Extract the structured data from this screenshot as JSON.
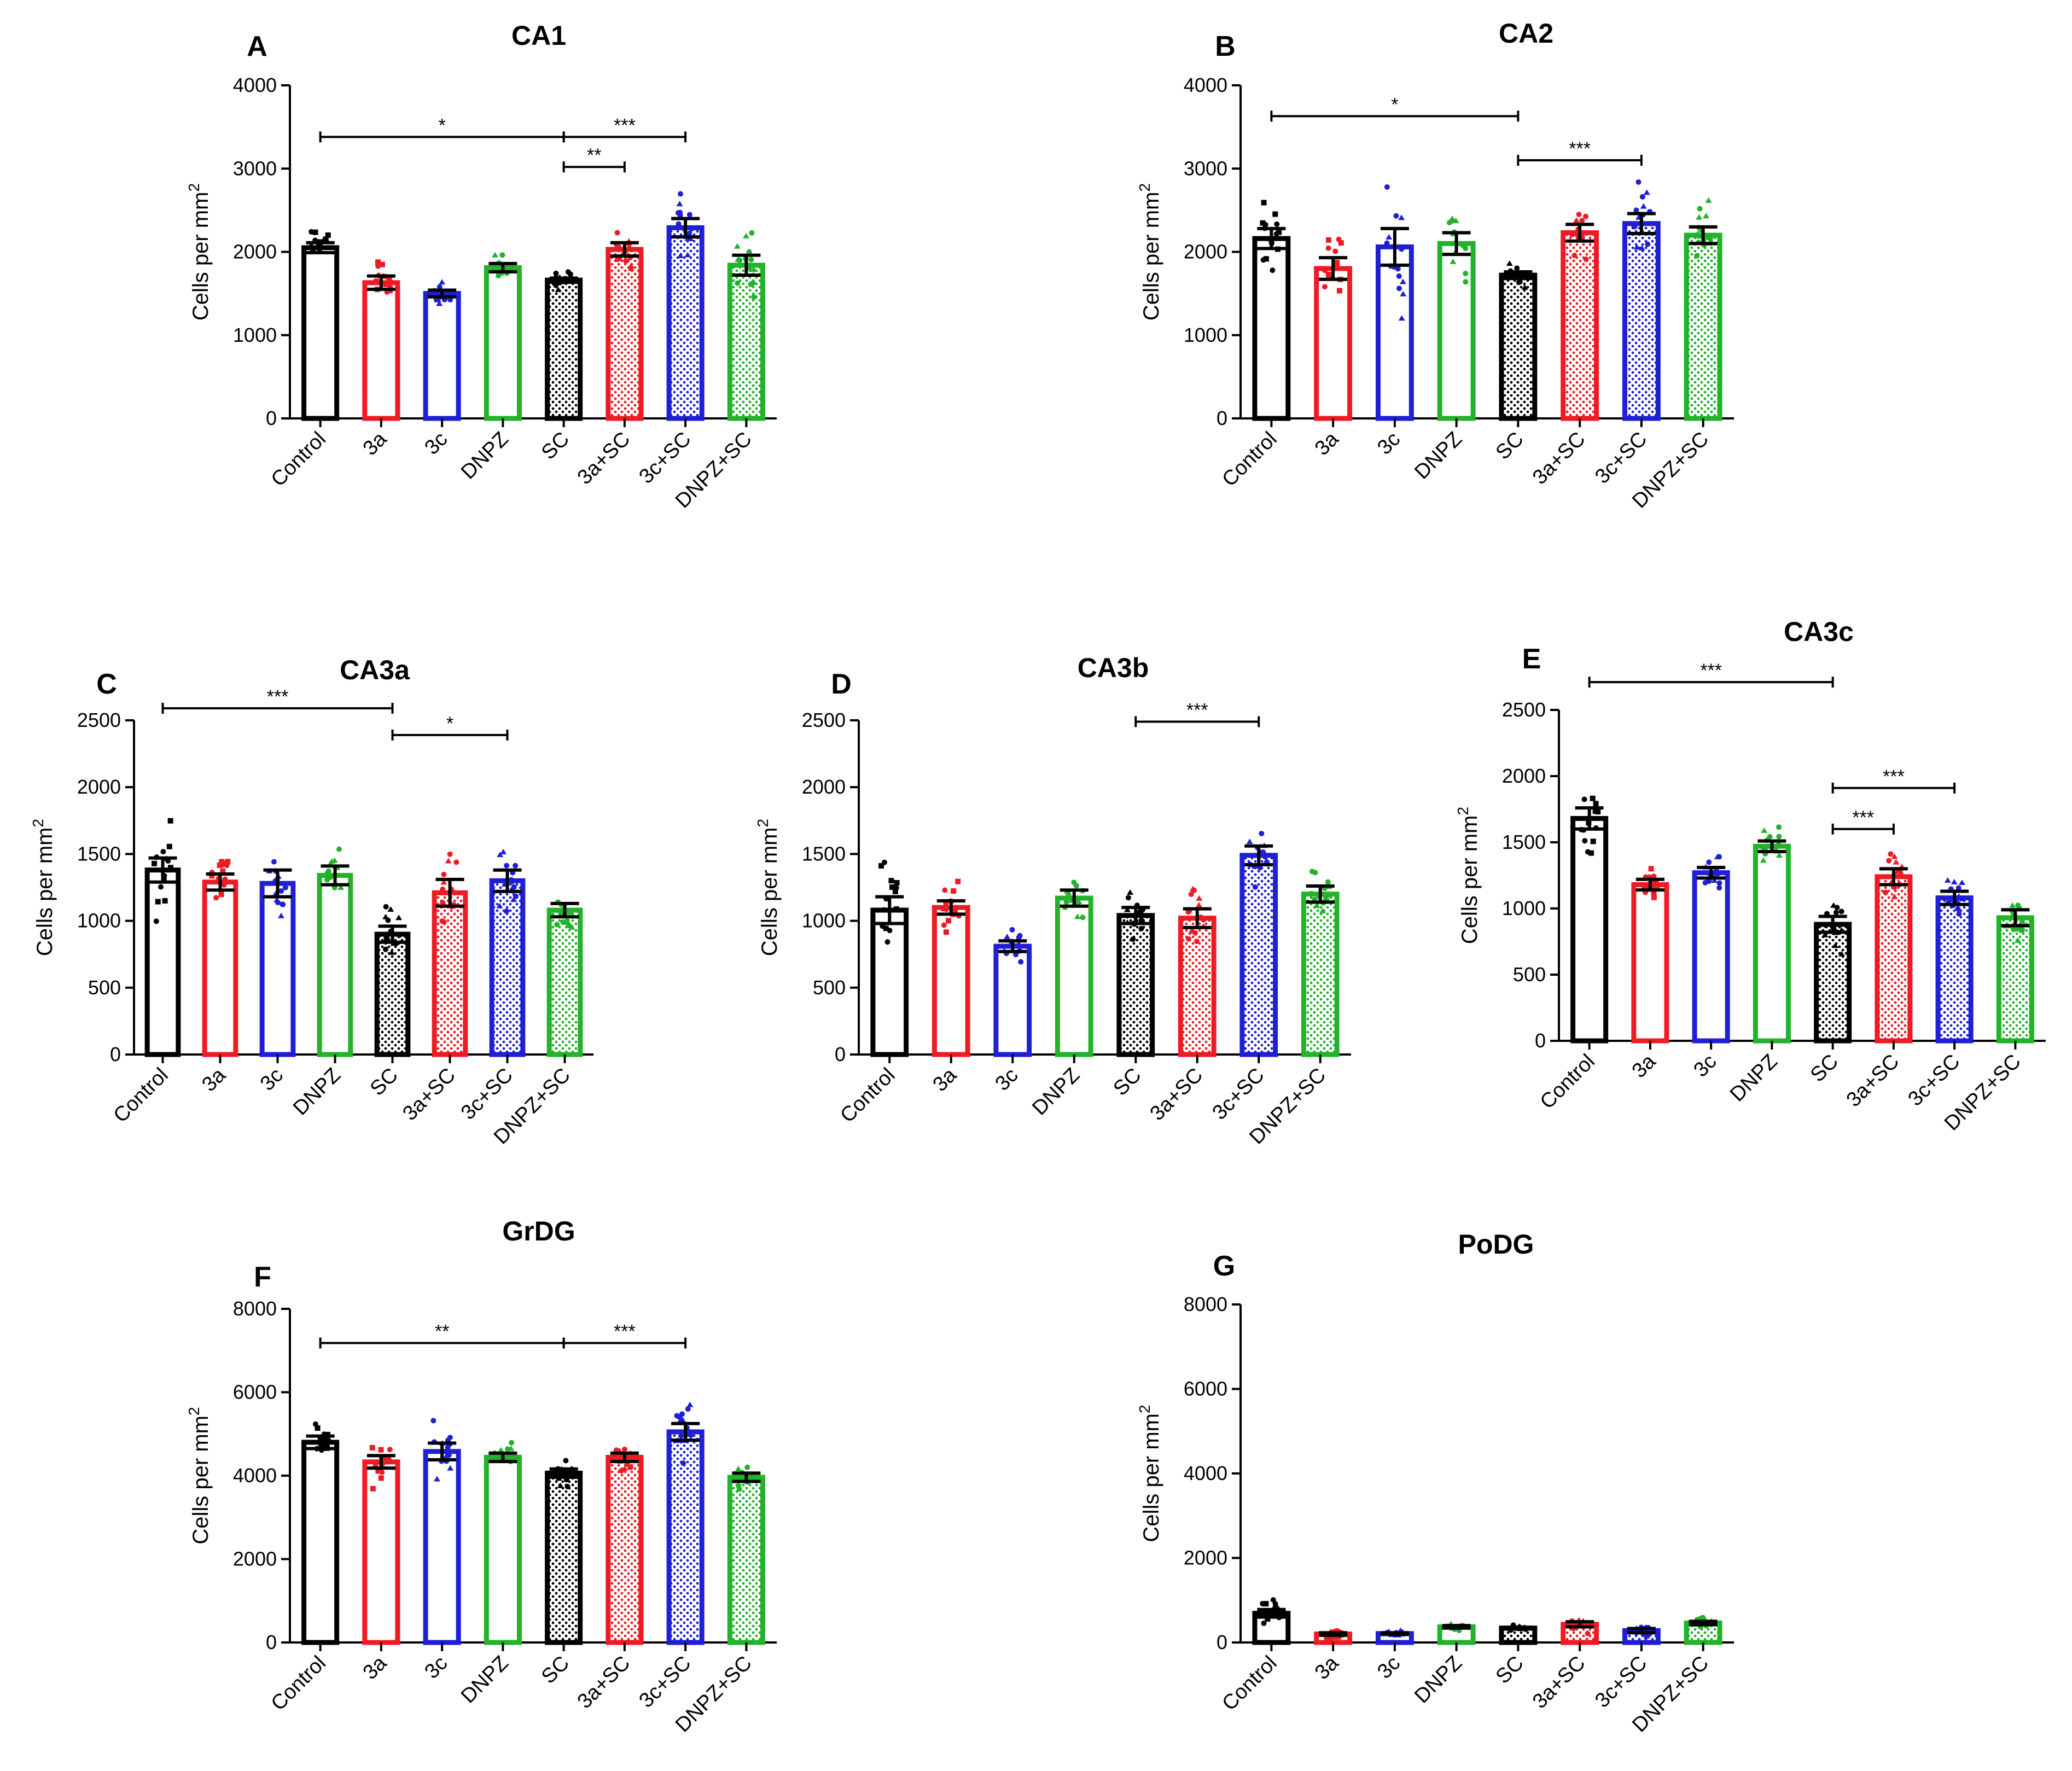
{
  "chart_data": [
    {
      "type": "bar",
      "panel": "A",
      "title": "CA1",
      "ylabel": "Cells per mm",
      "ylabel_superscript": "2",
      "ylim": [
        0,
        4000
      ],
      "yticks": [
        "0",
        "1000",
        "2000",
        "3000",
        "4000"
      ],
      "categories": [
        "Control",
        "3a",
        "3c",
        "DNPZ",
        "SC",
        "3a+SC",
        "3c+SC",
        "DNPZ+SC"
      ],
      "values": [
        2050,
        1630,
        1500,
        1810,
        1660,
        2030,
        2290,
        1840
      ],
      "errors": [
        60,
        80,
        40,
        50,
        25,
        80,
        110,
        120
      ],
      "annotations": [
        {
          "from": 0,
          "to": 4,
          "label": "*",
          "level": 3380
        },
        {
          "from": 4,
          "to": 6,
          "label": "***",
          "level": 3380
        },
        {
          "from": 4,
          "to": 5,
          "label": "**",
          "level": 3020
        }
      ]
    },
    {
      "type": "bar",
      "panel": "B",
      "title": "CA2",
      "ylabel": "Cells per mm",
      "ylabel_superscript": "2",
      "ylim": [
        0,
        4000
      ],
      "yticks": [
        "0",
        "1000",
        "2000",
        "3000",
        "4000"
      ],
      "categories": [
        "Control",
        "3a",
        "3c",
        "DNPZ",
        "SC",
        "3a+SC",
        "3c+SC",
        "DNPZ+SC"
      ],
      "values": [
        2160,
        1800,
        2060,
        2100,
        1720,
        2230,
        2340,
        2200
      ],
      "errors": [
        120,
        130,
        220,
        130,
        40,
        100,
        120,
        100
      ],
      "annotations": [
        {
          "from": 0,
          "to": 4,
          "label": "*",
          "level": 3630
        },
        {
          "from": 4,
          "to": 6,
          "label": "***",
          "level": 3100
        }
      ]
    },
    {
      "type": "bar",
      "panel": "C",
      "title": "CA3a",
      "ylabel": "Cells per mm",
      "ylabel_superscript": "2",
      "ylim": [
        0,
        2500
      ],
      "yticks": [
        "0",
        "500",
        "1000",
        "1500",
        "2000",
        "2500"
      ],
      "categories": [
        "Control",
        "3a",
        "3c",
        "DNPZ",
        "SC",
        "3a+SC",
        "3c+SC",
        "DNPZ+SC"
      ],
      "values": [
        1380,
        1290,
        1280,
        1340,
        900,
        1210,
        1300,
        1080
      ],
      "errors": [
        90,
        60,
        100,
        70,
        60,
        100,
        80,
        50
      ],
      "annotations": [
        {
          "from": 0,
          "to": 4,
          "label": "***",
          "level": 2590
        },
        {
          "from": 4,
          "to": 6,
          "label": "*",
          "level": 2390
        }
      ]
    },
    {
      "type": "bar",
      "panel": "D",
      "title": "CA3b",
      "ylabel": "Cells per mm",
      "ylabel_superscript": "2",
      "ylim": [
        0,
        2500
      ],
      "yticks": [
        "0",
        "500",
        "1000",
        "1500",
        "2000",
        "2500"
      ],
      "categories": [
        "Control",
        "3a",
        "3c",
        "DNPZ",
        "SC",
        "3a+SC",
        "3c+SC",
        "DNPZ+SC"
      ],
      "values": [
        1080,
        1100,
        810,
        1170,
        1040,
        1020,
        1490,
        1200
      ],
      "errors": [
        100,
        50,
        40,
        60,
        60,
        70,
        70,
        60
      ],
      "annotations": [
        {
          "from": 4,
          "to": 6,
          "label": "***",
          "level": 2490
        }
      ]
    },
    {
      "type": "bar",
      "panel": "E",
      "title": "CA3c",
      "ylabel": "Cells per mm",
      "ylabel_superscript": "2",
      "ylim": [
        0,
        2500
      ],
      "yticks": [
        "0",
        "500",
        "1000",
        "1500",
        "2000",
        "2500"
      ],
      "categories": [
        "Control",
        "3a",
        "3c",
        "DNPZ",
        "SC",
        "3a+SC",
        "3c+SC",
        "DNPZ+SC"
      ],
      "values": [
        1680,
        1180,
        1270,
        1470,
        880,
        1240,
        1080,
        930
      ],
      "errors": [
        80,
        40,
        40,
        40,
        60,
        60,
        50,
        60
      ],
      "annotations": [
        {
          "from": 0,
          "to": 4,
          "label": "***",
          "level": 2710
        },
        {
          "from": 4,
          "to": 6,
          "label": "***",
          "level": 1910
        },
        {
          "from": 4,
          "to": 5,
          "label": "***",
          "level": 1600
        }
      ]
    },
    {
      "type": "bar",
      "panel": "F",
      "title": "GrDG",
      "ylabel": "Cells per mm",
      "ylabel_superscript": "2",
      "ylim": [
        0,
        8000
      ],
      "yticks": [
        "0",
        "2000",
        "4000",
        "6000",
        "8000"
      ],
      "categories": [
        "Control",
        "3a",
        "3c",
        "DNPZ",
        "SC",
        "3a+SC",
        "3c+SC",
        "DNPZ+SC"
      ],
      "values": [
        4800,
        4330,
        4580,
        4440,
        4060,
        4440,
        5050,
        3960
      ],
      "errors": [
        150,
        150,
        200,
        100,
        100,
        100,
        200,
        100
      ],
      "annotations": [
        {
          "from": 0,
          "to": 4,
          "label": "**",
          "level": 7180
        },
        {
          "from": 4,
          "to": 6,
          "label": "***",
          "level": 7180
        }
      ]
    },
    {
      "type": "bar",
      "panel": "G",
      "title": "PoDG",
      "ylabel": "Cells per mm",
      "ylabel_superscript": "2",
      "ylim": [
        0,
        8000
      ],
      "yticks": [
        "0",
        "2000",
        "4000",
        "6000",
        "8000"
      ],
      "categories": [
        "Control",
        "3a",
        "3c",
        "DNPZ",
        "SC",
        "3a+SC",
        "3c+SC",
        "DNPZ+SC"
      ],
      "values": [
        690,
        200,
        210,
        370,
        340,
        430,
        280,
        460
      ],
      "errors": [
        90,
        30,
        20,
        30,
        20,
        60,
        50,
        40
      ],
      "annotations": []
    }
  ],
  "colors": {
    "series": [
      "#000000",
      "#ed1c24",
      "#1f1fd6",
      "#22b22b",
      "#000000",
      "#ed1c24",
      "#1f1fd6",
      "#22b22b"
    ],
    "axis": "#000000"
  }
}
